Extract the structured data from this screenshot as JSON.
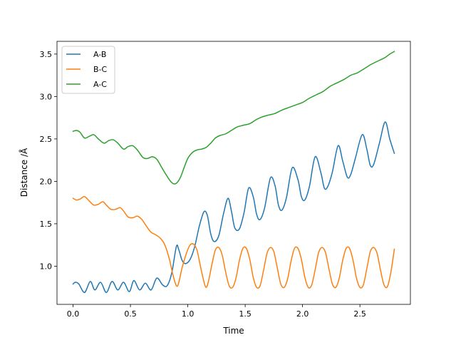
{
  "chart_data": {
    "type": "line",
    "title": "",
    "xlabel": "Time",
    "ylabel": "Distance /Å",
    "xlim": [
      -0.14,
      2.94
    ],
    "ylim": [
      0.55,
      3.65
    ],
    "xticks": [
      0.0,
      0.5,
      1.0,
      1.5,
      2.0,
      2.5
    ],
    "xtick_labels": [
      "0.0",
      "0.5",
      "1.0",
      "1.5",
      "2.0",
      "2.5"
    ],
    "yticks": [
      1.0,
      1.5,
      2.0,
      2.5,
      3.0,
      3.5
    ],
    "ytick_labels": [
      "1.0",
      "1.5",
      "2.0",
      "2.5",
      "3.0",
      "3.5"
    ],
    "grid": false,
    "legend_position": "upper-left",
    "series": [
      {
        "name": "A-B",
        "color": "#1f77b4",
        "x": [
          0.0,
          0.02,
          0.05,
          0.1,
          0.15,
          0.19,
          0.24,
          0.29,
          0.34,
          0.39,
          0.44,
          0.49,
          0.53,
          0.58,
          0.63,
          0.68,
          0.73,
          0.78,
          0.82,
          0.86,
          0.9,
          0.92,
          0.95,
          0.98,
          1.02,
          1.06,
          1.1,
          1.14,
          1.17,
          1.2,
          1.23,
          1.27,
          1.31,
          1.35,
          1.38,
          1.41,
          1.45,
          1.49,
          1.53,
          1.57,
          1.6,
          1.63,
          1.67,
          1.72,
          1.76,
          1.79,
          1.82,
          1.86,
          1.91,
          1.96,
          1.99,
          2.02,
          2.06,
          2.11,
          2.16,
          2.19,
          2.22,
          2.26,
          2.31,
          2.35,
          2.39,
          2.42,
          2.46,
          2.52,
          2.56,
          2.59,
          2.62,
          2.67,
          2.72,
          2.76,
          2.8
        ],
        "y": [
          0.79,
          0.81,
          0.79,
          0.69,
          0.82,
          0.72,
          0.81,
          0.69,
          0.82,
          0.72,
          0.81,
          0.7,
          0.83,
          0.72,
          0.8,
          0.72,
          0.86,
          0.78,
          0.77,
          0.92,
          1.23,
          1.2,
          1.07,
          1.03,
          1.08,
          1.23,
          1.47,
          1.64,
          1.6,
          1.38,
          1.29,
          1.36,
          1.61,
          1.8,
          1.65,
          1.45,
          1.44,
          1.63,
          1.92,
          1.82,
          1.61,
          1.55,
          1.69,
          2.04,
          1.95,
          1.72,
          1.66,
          1.81,
          2.16,
          2.02,
          1.82,
          1.78,
          1.94,
          2.29,
          2.1,
          1.92,
          1.94,
          2.11,
          2.42,
          2.24,
          2.05,
          2.08,
          2.27,
          2.55,
          2.38,
          2.19,
          2.2,
          2.45,
          2.7,
          2.5,
          2.33
        ]
      },
      {
        "name": "B-C",
        "color": "#ff7f0e",
        "x": [
          0.0,
          0.03,
          0.06,
          0.1,
          0.14,
          0.18,
          0.22,
          0.26,
          0.29,
          0.33,
          0.37,
          0.41,
          0.44,
          0.48,
          0.52,
          0.56,
          0.6,
          0.64,
          0.68,
          0.72,
          0.76,
          0.8,
          0.84,
          0.87,
          0.9,
          0.92,
          0.95,
          0.99,
          1.02,
          1.05,
          1.08,
          1.11,
          1.14,
          1.16,
          1.18,
          1.21,
          1.24,
          1.27,
          1.3,
          1.33,
          1.36,
          1.39,
          1.42,
          1.45,
          1.48,
          1.51,
          1.54,
          1.57,
          1.6,
          1.63,
          1.66,
          1.69,
          1.72,
          1.75,
          1.78,
          1.81,
          1.84,
          1.87,
          1.9,
          1.93,
          1.96,
          1.99,
          2.02,
          2.05,
          2.08,
          2.11,
          2.14,
          2.17,
          2.2,
          2.23,
          2.26,
          2.29,
          2.32,
          2.35,
          2.38,
          2.41,
          2.44,
          2.47,
          2.5,
          2.53,
          2.56,
          2.59,
          2.62,
          2.65,
          2.68,
          2.71,
          2.74,
          2.77,
          2.8
        ],
        "y": [
          1.8,
          1.78,
          1.79,
          1.82,
          1.77,
          1.72,
          1.73,
          1.76,
          1.72,
          1.67,
          1.67,
          1.69,
          1.65,
          1.58,
          1.57,
          1.59,
          1.55,
          1.47,
          1.4,
          1.37,
          1.33,
          1.25,
          1.08,
          0.9,
          0.77,
          0.8,
          0.98,
          1.16,
          1.25,
          1.26,
          1.19,
          1.0,
          0.82,
          0.75,
          0.82,
          1.02,
          1.19,
          1.22,
          1.13,
          0.93,
          0.77,
          0.75,
          0.86,
          1.07,
          1.21,
          1.21,
          1.08,
          0.87,
          0.75,
          0.77,
          0.95,
          1.15,
          1.22,
          1.17,
          0.98,
          0.79,
          0.75,
          0.85,
          1.06,
          1.21,
          1.21,
          1.08,
          0.87,
          0.75,
          0.78,
          0.96,
          1.16,
          1.22,
          1.16,
          0.97,
          0.79,
          0.75,
          0.86,
          1.07,
          1.21,
          1.21,
          1.07,
          0.86,
          0.75,
          0.78,
          0.97,
          1.17,
          1.22,
          1.15,
          0.95,
          0.78,
          0.76,
          0.93,
          1.2
        ]
      },
      {
        "name": "A-C",
        "color": "#2ca02c",
        "x": [
          0.0,
          0.03,
          0.06,
          0.1,
          0.14,
          0.18,
          0.22,
          0.27,
          0.31,
          0.35,
          0.39,
          0.44,
          0.48,
          0.52,
          0.56,
          0.61,
          0.65,
          0.69,
          0.73,
          0.77,
          0.81,
          0.85,
          0.88,
          0.91,
          0.94,
          0.97,
          1.0,
          1.04,
          1.08,
          1.12,
          1.16,
          1.2,
          1.24,
          1.28,
          1.33,
          1.38,
          1.43,
          1.48,
          1.54,
          1.6,
          1.65,
          1.7,
          1.76,
          1.82,
          1.88,
          1.94,
          2.0,
          2.06,
          2.12,
          2.18,
          2.24,
          2.3,
          2.36,
          2.42,
          2.48,
          2.54,
          2.6,
          2.66,
          2.72,
          2.76,
          2.8
        ],
        "y": [
          2.59,
          2.6,
          2.58,
          2.51,
          2.53,
          2.55,
          2.5,
          2.45,
          2.48,
          2.49,
          2.45,
          2.38,
          2.41,
          2.42,
          2.37,
          2.28,
          2.27,
          2.29,
          2.26,
          2.17,
          2.08,
          2.0,
          1.97,
          1.99,
          2.06,
          2.17,
          2.27,
          2.34,
          2.37,
          2.38,
          2.4,
          2.45,
          2.51,
          2.54,
          2.56,
          2.6,
          2.64,
          2.66,
          2.68,
          2.73,
          2.76,
          2.78,
          2.8,
          2.84,
          2.87,
          2.9,
          2.93,
          2.98,
          3.02,
          3.06,
          3.12,
          3.16,
          3.2,
          3.25,
          3.28,
          3.33,
          3.38,
          3.42,
          3.46,
          3.5,
          3.53
        ]
      }
    ]
  }
}
